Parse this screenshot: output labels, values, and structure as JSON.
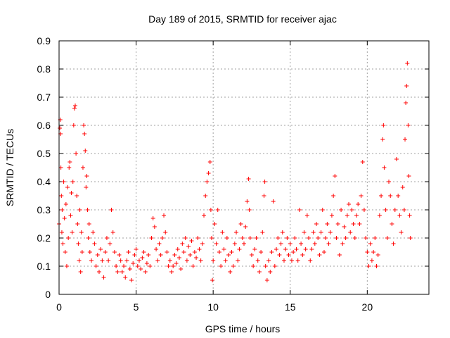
{
  "chart_data": {
    "type": "scatter",
    "title": "Day 189 of 2015, SRMTID for receiver ajac",
    "xlabel": "GPS time / hours",
    "ylabel": "SRMTID / TECUs",
    "xlim": [
      0,
      24
    ],
    "ylim": [
      0,
      0.9
    ],
    "x_ticks": [
      0,
      5,
      10,
      15,
      20
    ],
    "y_ticks": [
      0,
      0.1,
      0.2,
      0.3,
      0.4,
      0.5,
      0.6,
      0.7,
      0.8,
      0.9
    ],
    "x_tick_labels": [
      "0",
      "5",
      "10",
      "15",
      "20"
    ],
    "y_tick_labels": [
      "0",
      "0.1",
      "0.2",
      "0.3",
      "0.4",
      "0.5",
      "0.6",
      "0.7",
      "0.8",
      "0.9"
    ],
    "grid": true,
    "marker": "+",
    "color": "#ff0000",
    "series": [
      {
        "name": "SRMTID",
        "points": [
          [
            0.0,
            0.25
          ],
          [
            0.05,
            0.59
          ],
          [
            0.08,
            0.62
          ],
          [
            0.1,
            0.57
          ],
          [
            0.12,
            0.45
          ],
          [
            0.15,
            0.35
          ],
          [
            0.18,
            0.22
          ],
          [
            0.2,
            0.3
          ],
          [
            0.25,
            0.18
          ],
          [
            0.3,
            0.4
          ],
          [
            0.35,
            0.27
          ],
          [
            0.4,
            0.15
          ],
          [
            0.45,
            0.32
          ],
          [
            0.5,
            0.1
          ],
          [
            0.55,
            0.38
          ],
          [
            0.6,
            0.2
          ],
          [
            0.65,
            0.45
          ],
          [
            0.7,
            0.47
          ],
          [
            0.75,
            0.28
          ],
          [
            0.8,
            0.36
          ],
          [
            0.85,
            0.22
          ],
          [
            0.9,
            0.4
          ],
          [
            0.95,
            0.6
          ],
          [
            1.0,
            0.66
          ],
          [
            1.05,
            0.67
          ],
          [
            1.1,
            0.5
          ],
          [
            1.15,
            0.35
          ],
          [
            1.2,
            0.25
          ],
          [
            1.25,
            0.18
          ],
          [
            1.3,
            0.12
          ],
          [
            1.35,
            0.3
          ],
          [
            1.4,
            0.08
          ],
          [
            1.45,
            0.22
          ],
          [
            1.5,
            0.15
          ],
          [
            1.55,
            0.45
          ],
          [
            1.6,
            0.6
          ],
          [
            1.65,
            0.57
          ],
          [
            1.7,
            0.51
          ],
          [
            1.75,
            0.38
          ],
          [
            1.8,
            0.42
          ],
          [
            1.85,
            0.3
          ],
          [
            1.9,
            0.2
          ],
          [
            1.95,
            0.25
          ],
          [
            2.0,
            0.15
          ],
          [
            2.1,
            0.12
          ],
          [
            2.2,
            0.22
          ],
          [
            2.3,
            0.18
          ],
          [
            2.4,
            0.1
          ],
          [
            2.5,
            0.14
          ],
          [
            2.6,
            0.08
          ],
          [
            2.7,
            0.16
          ],
          [
            2.8,
            0.12
          ],
          [
            2.9,
            0.06
          ],
          [
            3.0,
            0.15
          ],
          [
            3.1,
            0.2
          ],
          [
            3.2,
            0.12
          ],
          [
            3.3,
            0.18
          ],
          [
            3.4,
            0.3
          ],
          [
            3.5,
            0.22
          ],
          [
            3.6,
            0.15
          ],
          [
            3.7,
            0.1
          ],
          [
            3.8,
            0.08
          ],
          [
            3.9,
            0.14
          ],
          [
            4.0,
            0.12
          ],
          [
            4.1,
            0.08
          ],
          [
            4.2,
            0.1
          ],
          [
            4.3,
            0.06
          ],
          [
            4.4,
            0.12
          ],
          [
            4.5,
            0.15
          ],
          [
            4.6,
            0.09
          ],
          [
            4.7,
            0.05
          ],
          [
            4.8,
            0.11
          ],
          [
            4.9,
            0.14
          ],
          [
            5.0,
            0.16
          ],
          [
            5.1,
            0.1
          ],
          [
            5.2,
            0.12
          ],
          [
            5.3,
            0.09
          ],
          [
            5.4,
            0.13
          ],
          [
            5.5,
            0.15
          ],
          [
            5.6,
            0.08
          ],
          [
            5.7,
            0.11
          ],
          [
            5.8,
            0.14
          ],
          [
            5.9,
            0.1
          ],
          [
            6.0,
            0.2
          ],
          [
            6.1,
            0.27
          ],
          [
            6.2,
            0.24
          ],
          [
            6.3,
            0.16
          ],
          [
            6.4,
            0.12
          ],
          [
            6.5,
            0.18
          ],
          [
            6.6,
            0.14
          ],
          [
            6.7,
            0.2
          ],
          [
            6.8,
            0.28
          ],
          [
            6.9,
            0.22
          ],
          [
            7.0,
            0.15
          ],
          [
            7.1,
            0.1
          ],
          [
            7.2,
            0.12
          ],
          [
            7.3,
            0.08
          ],
          [
            7.4,
            0.1
          ],
          [
            7.5,
            0.14
          ],
          [
            7.6,
            0.11
          ],
          [
            7.7,
            0.16
          ],
          [
            7.8,
            0.13
          ],
          [
            7.9,
            0.09
          ],
          [
            8.0,
            0.18
          ],
          [
            8.1,
            0.15
          ],
          [
            8.2,
            0.2
          ],
          [
            8.3,
            0.12
          ],
          [
            8.4,
            0.17
          ],
          [
            8.5,
            0.14
          ],
          [
            8.6,
            0.19
          ],
          [
            8.7,
            0.1
          ],
          [
            8.8,
            0.15
          ],
          [
            8.9,
            0.13
          ],
          [
            9.0,
            0.2
          ],
          [
            9.1,
            0.16
          ],
          [
            9.2,
            0.12
          ],
          [
            9.3,
            0.18
          ],
          [
            9.4,
            0.28
          ],
          [
            9.5,
            0.35
          ],
          [
            9.6,
            0.4
          ],
          [
            9.7,
            0.43
          ],
          [
            9.8,
            0.47
          ],
          [
            9.85,
            0.3
          ],
          [
            9.9,
            0.2
          ],
          [
            9.95,
            0.05
          ],
          [
            10.0,
            0.12
          ],
          [
            10.1,
            0.25
          ],
          [
            10.2,
            0.18
          ],
          [
            10.3,
            0.3
          ],
          [
            10.4,
            0.15
          ],
          [
            10.5,
            0.1
          ],
          [
            10.6,
            0.22
          ],
          [
            10.7,
            0.16
          ],
          [
            10.8,
            0.12
          ],
          [
            10.9,
            0.2
          ],
          [
            11.0,
            0.14
          ],
          [
            11.1,
            0.08
          ],
          [
            11.2,
            0.15
          ],
          [
            11.3,
            0.1
          ],
          [
            11.4,
            0.18
          ],
          [
            11.5,
            0.22
          ],
          [
            11.6,
            0.12
          ],
          [
            11.7,
            0.16
          ],
          [
            11.8,
            0.25
          ],
          [
            11.9,
            0.2
          ],
          [
            12.0,
            0.18
          ],
          [
            12.1,
            0.24
          ],
          [
            12.2,
            0.33
          ],
          [
            12.3,
            0.41
          ],
          [
            12.35,
            0.3
          ],
          [
            12.4,
            0.2
          ],
          [
            12.5,
            0.14
          ],
          [
            12.6,
            0.1
          ],
          [
            12.7,
            0.16
          ],
          [
            12.8,
            0.2
          ],
          [
            12.9,
            0.12
          ],
          [
            13.0,
            0.08
          ],
          [
            13.1,
            0.15
          ],
          [
            13.2,
            0.22
          ],
          [
            13.3,
            0.35
          ],
          [
            13.35,
            0.4
          ],
          [
            13.4,
            0.1
          ],
          [
            13.5,
            0.05
          ],
          [
            13.6,
            0.12
          ],
          [
            13.7,
            0.08
          ],
          [
            13.8,
            0.15
          ],
          [
            13.9,
            0.33
          ],
          [
            14.0,
            0.1
          ],
          [
            14.1,
            0.16
          ],
          [
            14.2,
            0.2
          ],
          [
            14.3,
            0.14
          ],
          [
            14.4,
            0.18
          ],
          [
            14.5,
            0.22
          ],
          [
            14.6,
            0.12
          ],
          [
            14.7,
            0.16
          ],
          [
            14.8,
            0.2
          ],
          [
            14.9,
            0.14
          ],
          [
            15.0,
            0.18
          ],
          [
            15.1,
            0.12
          ],
          [
            15.2,
            0.15
          ],
          [
            15.3,
            0.2
          ],
          [
            15.4,
            0.16
          ],
          [
            15.5,
            0.12
          ],
          [
            15.6,
            0.3
          ],
          [
            15.7,
            0.18
          ],
          [
            15.8,
            0.14
          ],
          [
            15.9,
            0.22
          ],
          [
            16.0,
            0.16
          ],
          [
            16.1,
            0.28
          ],
          [
            16.2,
            0.2
          ],
          [
            16.3,
            0.12
          ],
          [
            16.4,
            0.16
          ],
          [
            16.5,
            0.22
          ],
          [
            16.6,
            0.18
          ],
          [
            16.7,
            0.25
          ],
          [
            16.8,
            0.2
          ],
          [
            16.9,
            0.14
          ],
          [
            17.0,
            0.22
          ],
          [
            17.1,
            0.3
          ],
          [
            17.2,
            0.15
          ],
          [
            17.3,
            0.2
          ],
          [
            17.4,
            0.25
          ],
          [
            17.5,
            0.18
          ],
          [
            17.6,
            0.22
          ],
          [
            17.7,
            0.28
          ],
          [
            17.8,
            0.35
          ],
          [
            17.9,
            0.42
          ],
          [
            18.0,
            0.2
          ],
          [
            18.1,
            0.25
          ],
          [
            18.2,
            0.14
          ],
          [
            18.3,
            0.3
          ],
          [
            18.4,
            0.18
          ],
          [
            18.5,
            0.24
          ],
          [
            18.6,
            0.2
          ],
          [
            18.7,
            0.28
          ],
          [
            18.8,
            0.32
          ],
          [
            18.9,
            0.22
          ],
          [
            19.0,
            0.3
          ],
          [
            19.1,
            0.25
          ],
          [
            19.2,
            0.2
          ],
          [
            19.3,
            0.28
          ],
          [
            19.4,
            0.32
          ],
          [
            19.5,
            0.25
          ],
          [
            19.6,
            0.35
          ],
          [
            19.7,
            0.47
          ],
          [
            19.8,
            0.3
          ],
          [
            19.9,
            0.2
          ],
          [
            20.0,
            0.15
          ],
          [
            20.1,
            0.1
          ],
          [
            20.2,
            0.18
          ],
          [
            20.3,
            0.12
          ],
          [
            20.4,
            0.15
          ],
          [
            20.5,
            0.2
          ],
          [
            20.6,
            0.1
          ],
          [
            20.7,
            0.14
          ],
          [
            20.8,
            0.28
          ],
          [
            20.9,
            0.35
          ],
          [
            21.0,
            0.55
          ],
          [
            21.05,
            0.6
          ],
          [
            21.1,
            0.45
          ],
          [
            21.2,
            0.3
          ],
          [
            21.3,
            0.2
          ],
          [
            21.4,
            0.4
          ],
          [
            21.5,
            0.35
          ],
          [
            21.6,
            0.25
          ],
          [
            21.7,
            0.18
          ],
          [
            21.8,
            0.3
          ],
          [
            21.9,
            0.48
          ],
          [
            22.0,
            0.35
          ],
          [
            22.1,
            0.28
          ],
          [
            22.2,
            0.22
          ],
          [
            22.3,
            0.38
          ],
          [
            22.4,
            0.3
          ],
          [
            22.45,
            0.55
          ],
          [
            22.5,
            0.68
          ],
          [
            22.55,
            0.74
          ],
          [
            22.6,
            0.82
          ],
          [
            22.65,
            0.6
          ],
          [
            22.7,
            0.42
          ],
          [
            22.75,
            0.28
          ],
          [
            22.8,
            0.2
          ]
        ]
      }
    ]
  }
}
